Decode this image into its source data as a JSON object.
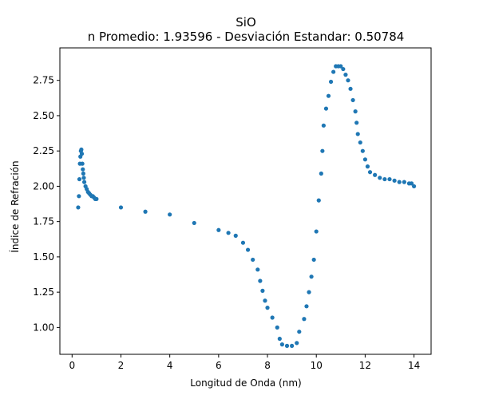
{
  "chart_data": {
    "type": "scatter",
    "title": "SiO",
    "subtitle": "n Promedio: 1.93596 - Desviación Estandar: 0.50784",
    "xlabel": "Longitud de Onda (nm)",
    "ylabel": "Índice de Refración",
    "xlim": [
      -0.5,
      14.7
    ],
    "ylim": [
      0.81,
      2.98
    ],
    "xticks": [
      0,
      2,
      4,
      6,
      8,
      10,
      12,
      14
    ],
    "yticks": [
      1.0,
      1.25,
      1.5,
      1.75,
      2.0,
      2.25,
      2.5,
      2.75
    ],
    "xtick_labels": [
      "0",
      "2",
      "4",
      "6",
      "8",
      "10",
      "12",
      "14"
    ],
    "ytick_labels": [
      "1.00",
      "1.25",
      "1.50",
      "1.75",
      "2.00",
      "2.25",
      "2.50",
      "2.75"
    ],
    "grid": false,
    "color": "#1f77b4",
    "x": [
      0.25,
      0.28,
      0.3,
      0.32,
      0.34,
      0.36,
      0.38,
      0.4,
      0.42,
      0.44,
      0.46,
      0.48,
      0.5,
      0.55,
      0.6,
      0.65,
      0.7,
      0.75,
      0.8,
      0.85,
      0.9,
      0.95,
      1.0,
      2.0,
      3.0,
      4.0,
      5.0,
      6.0,
      6.4,
      6.7,
      7.0,
      7.2,
      7.4,
      7.6,
      7.7,
      7.8,
      7.9,
      8.0,
      8.2,
      8.4,
      8.5,
      8.6,
      8.8,
      9.0,
      9.2,
      9.3,
      9.5,
      9.6,
      9.7,
      9.8,
      9.9,
      10.0,
      10.1,
      10.2,
      10.25,
      10.3,
      10.4,
      10.5,
      10.6,
      10.7,
      10.8,
      10.9,
      11.0,
      11.1,
      11.2,
      11.3,
      11.4,
      11.5,
      11.6,
      11.65,
      11.7,
      11.8,
      11.9,
      12.0,
      12.1,
      12.2,
      12.4,
      12.6,
      12.8,
      13.0,
      13.2,
      13.4,
      13.6,
      13.8,
      13.9,
      14.0
    ],
    "y": [
      1.85,
      1.93,
      2.05,
      2.16,
      2.21,
      2.25,
      2.26,
      2.23,
      2.16,
      2.12,
      2.09,
      2.06,
      2.03,
      2.0,
      1.98,
      1.96,
      1.95,
      1.94,
      1.93,
      1.93,
      1.92,
      1.91,
      1.91,
      1.85,
      1.82,
      1.8,
      1.74,
      1.69,
      1.67,
      1.65,
      1.6,
      1.55,
      1.48,
      1.41,
      1.33,
      1.26,
      1.19,
      1.14,
      1.07,
      1.0,
      0.92,
      0.88,
      0.87,
      0.87,
      0.89,
      0.97,
      1.06,
      1.15,
      1.25,
      1.36,
      1.48,
      1.68,
      1.9,
      2.09,
      2.25,
      2.43,
      2.55,
      2.64,
      2.74,
      2.81,
      2.85,
      2.85,
      2.85,
      2.83,
      2.79,
      2.75,
      2.69,
      2.61,
      2.53,
      2.45,
      2.37,
      2.31,
      2.25,
      2.19,
      2.14,
      2.1,
      2.08,
      2.06,
      2.05,
      2.05,
      2.04,
      2.03,
      2.03,
      2.02,
      2.02,
      2.0
    ]
  }
}
